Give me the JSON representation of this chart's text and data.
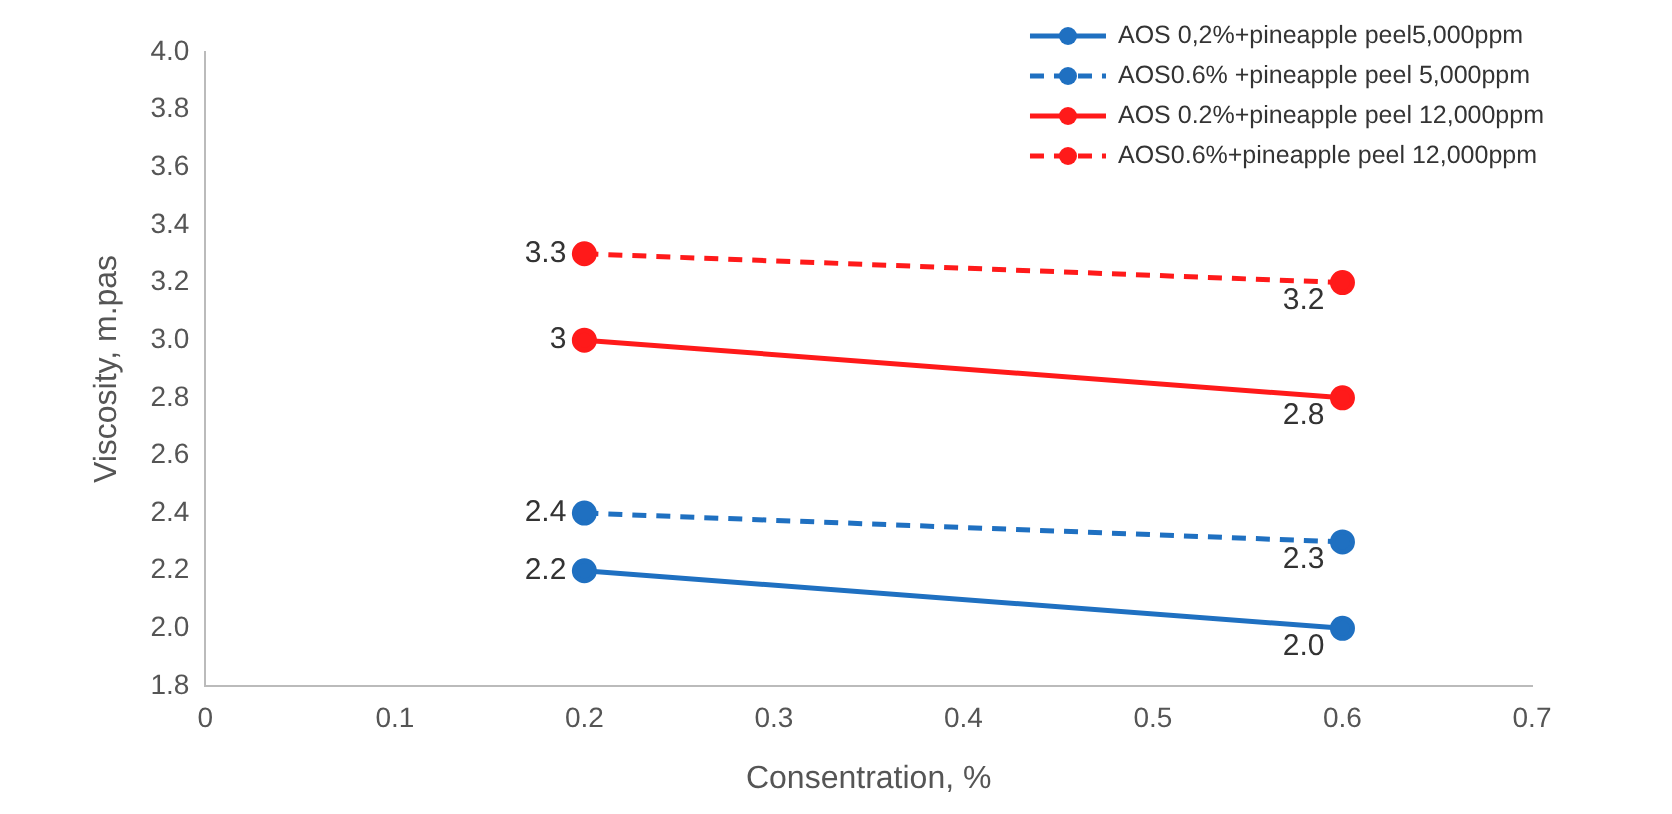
{
  "chart_data": {
    "type": "line",
    "xlabel": "Consentration, %",
    "ylabel": "Viscosity, m.pas",
    "xlim": [
      0,
      0.7
    ],
    "xticks": [
      0,
      0.1,
      0.2,
      0.3,
      0.4,
      0.5,
      0.6,
      0.7
    ],
    "ylim": [
      1.8,
      4.0
    ],
    "yticks": [
      1.8,
      {
        "value": 2.0,
        "label": "2.0"
      },
      2.2,
      2.4,
      2.6,
      2.8,
      {
        "value": 3.0,
        "label": "3.0"
      },
      3.2,
      3.4,
      3.6,
      3.8,
      {
        "value": 4.0,
        "label": "4.0"
      }
    ],
    "grid": false,
    "legend": "top right",
    "marker": "circle",
    "x": [
      0.2,
      0.6
    ],
    "series": [
      {
        "name": "AOS 0,2%+pineapple peel5,000ppm",
        "color": "#1f70c1",
        "values": [
          2.2,
          2.0
        ],
        "value_labels": [
          "2.2",
          "2.0"
        ],
        "line_style": "solid"
      },
      {
        "name": "AOS0.6% +pineapple peel 5,000ppm",
        "color": "#1f70c1",
        "values": [
          2.4,
          2.3
        ],
        "value_labels": [
          "2.4",
          "2.3"
        ],
        "line_style": "dashed"
      },
      {
        "name": "AOS 0.2%+pineapple peel 12,000ppm",
        "color": "#ff1a1a",
        "values": [
          3.0,
          2.8
        ],
        "value_labels": [
          "3",
          "2.8"
        ],
        "line_style": "solid"
      },
      {
        "name": "AOS0.6%+pineapple peel 12,000ppm",
        "color": "#ff1a1a",
        "values": [
          3.3,
          3.2
        ],
        "value_labels": [
          "3.3",
          "3.2"
        ],
        "line_style": "dashed"
      }
    ]
  }
}
